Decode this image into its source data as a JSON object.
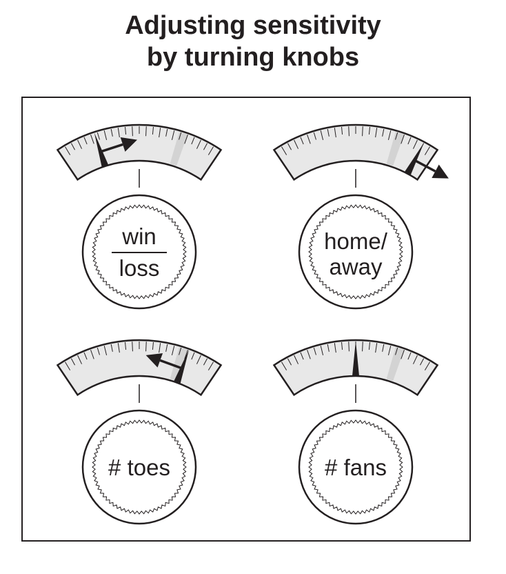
{
  "title": {
    "line1": "Adjusting sensitivity",
    "line2": "by turning knobs"
  },
  "colors": {
    "ink": "#231f20",
    "gauge_fill": "#e8e8e8",
    "highlight_band": "#d3d3d3",
    "knob_fill": "#ffffff"
  },
  "knobs": [
    {
      "id": "win-loss",
      "label_lines": [
        "win",
        "loss"
      ],
      "fraction_bar": true,
      "needle_angle_deg": -18,
      "arrow_direction": "right"
    },
    {
      "id": "home-away",
      "label_lines": [
        "home/",
        "away"
      ],
      "fraction_bar": false,
      "needle_angle_deg": 28,
      "arrow_direction": "right"
    },
    {
      "id": "toes",
      "label_lines": [
        "# toes"
      ],
      "fraction_bar": false,
      "needle_angle_deg": 20,
      "arrow_direction": "left"
    },
    {
      "id": "fans",
      "label_lines": [
        "# fans"
      ],
      "fraction_bar": false,
      "needle_angle_deg": 0,
      "arrow_direction": "none"
    }
  ]
}
